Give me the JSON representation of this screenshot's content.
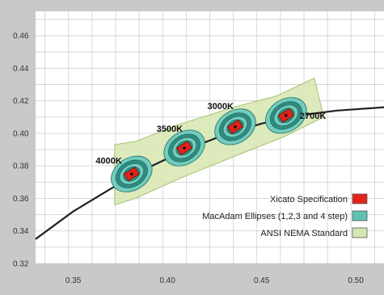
{
  "chart_data": {
    "type": "scatter",
    "title": "",
    "xlabel": "",
    "ylabel": "",
    "xlim": [
      0.33,
      0.515
    ],
    "ylim": [
      0.32,
      0.475
    ],
    "x_ticks": [
      "0.35",
      "0.40",
      "0.45",
      "0.50"
    ],
    "y_ticks": [
      "0.32",
      "0.34",
      "0.36",
      "0.38",
      "0.40",
      "0.42",
      "0.44",
      "0.46"
    ],
    "grid": true,
    "legend_position": "bottom-right",
    "planckian_locus": {
      "x": [
        0.33,
        0.35,
        0.37,
        0.39,
        0.41,
        0.43,
        0.45,
        0.47,
        0.49,
        0.515
      ],
      "y": [
        0.335,
        0.352,
        0.366,
        0.379,
        0.39,
        0.399,
        0.406,
        0.411,
        0.414,
        0.416
      ]
    },
    "ansi_band": {
      "x": [
        0.372,
        0.383,
        0.408,
        0.438,
        0.462,
        0.483,
        0.478,
        0.458,
        0.435,
        0.405,
        0.383,
        0.372
      ],
      "y": [
        0.356,
        0.36,
        0.373,
        0.387,
        0.398,
        0.41,
        0.434,
        0.423,
        0.416,
        0.405,
        0.395,
        0.393
      ]
    },
    "points": [
      {
        "label": "4000K",
        "x": 0.381,
        "y": 0.375
      },
      {
        "label": "3500K",
        "x": 0.409,
        "y": 0.391
      },
      {
        "label": "3000K",
        "x": 0.436,
        "y": 0.404
      },
      {
        "label": "2700K",
        "x": 0.463,
        "y": 0.411
      }
    ],
    "legend": [
      {
        "name": "Xicato Specification",
        "color": "#e2231a"
      },
      {
        "name": "MacAdam Ellipses (1,2,3 and 4 step)",
        "color": "#5fc2b3"
      },
      {
        "name": "ANSI NEMA Standard",
        "color": "#d6e6b0"
      }
    ],
    "colors": {
      "band_fill": "#d6e6b0",
      "band_stroke": "#a6c276",
      "ellipse_ring_dark": "#2f8d80",
      "ellipse_ring_light": "#73ccbd",
      "ellipse_core": "#e2231a",
      "locus": "#222222"
    }
  }
}
